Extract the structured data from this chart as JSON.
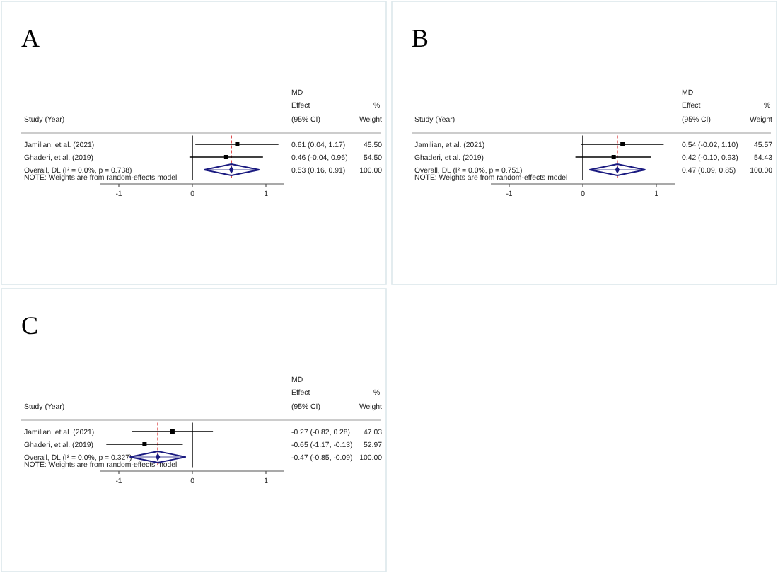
{
  "chart_data": [
    {
      "type": "scatter",
      "title": "A",
      "orientation": "horizontal",
      "categories": [
        "Jamilian, et al. (2021)",
        "Ghaderi, et al. (2019)",
        "Overall, DL (I² = 0.0%, p = 0.738)"
      ],
      "series": [
        {
          "color": "#000000",
          "marker": "square",
          "values": [
            0.61,
            0.46,
            null
          ],
          "errors": [
            [
              0.04,
              1.17
            ],
            [
              -0.04,
              0.96
            ],
            null
          ],
          "value_labels": [
            "0.61 (0.04, 1.17)",
            "0.46 (-0.04, 0.96)",
            null
          ]
        },
        {
          "color": "#1a1a80",
          "marker": "diamond",
          "values": [
            null,
            null,
            0.53
          ],
          "errors": [
            null,
            null,
            [
              0.16,
              0.91
            ]
          ]
        }
      ],
      "xlim": [
        -1.25,
        1.25
      ],
      "xticks": [
        -1,
        0,
        1
      ],
      "ref_lines": [
        {
          "axis": "x",
          "value": 0,
          "color": "#000000",
          "line_style": "solid"
        },
        {
          "axis": "x",
          "value": 0.53,
          "color": "#d62728",
          "line_style": "dashed"
        }
      ],
      "annotations": [
        "MD",
        "Effect",
        "(95% CI)",
        "%",
        "Weight",
        "Study (Year)",
        "NOTE: Weights are from random-effects model",
        "45.50",
        "54.50",
        "100.00",
        "0.53 (0.16, 0.91)"
      ]
    },
    {
      "type": "scatter",
      "title": "B",
      "orientation": "horizontal",
      "categories": [
        "Jamilian, et al. (2021)",
        "Ghaderi, et al. (2019)",
        "Overall, DL (I² = 0.0%, p = 0.751)"
      ],
      "series": [
        {
          "color": "#000000",
          "marker": "square",
          "values": [
            0.54,
            0.42,
            null
          ],
          "errors": [
            [
              -0.02,
              1.1
            ],
            [
              -0.1,
              0.93
            ],
            null
          ],
          "value_labels": [
            "0.54 (-0.02, 1.10)",
            "0.42 (-0.10, 0.93)",
            null
          ]
        },
        {
          "color": "#1a1a80",
          "marker": "diamond",
          "values": [
            null,
            null,
            0.47
          ],
          "errors": [
            null,
            null,
            [
              0.09,
              0.85
            ]
          ]
        }
      ],
      "xlim": [
        -1.25,
        1.25
      ],
      "xticks": [
        -1,
        0,
        1
      ],
      "ref_lines": [
        {
          "axis": "x",
          "value": 0,
          "color": "#000000",
          "line_style": "solid"
        },
        {
          "axis": "x",
          "value": 0.47,
          "color": "#d62728",
          "line_style": "dashed"
        }
      ],
      "annotations": [
        "MD",
        "Effect",
        "(95% CI)",
        "%",
        "Weight",
        "Study (Year)",
        "NOTE: Weights are from random-effects model",
        "45.57",
        "54.43",
        "100.00",
        "0.47 (0.09, 0.85)"
      ]
    },
    {
      "type": "scatter",
      "title": "C",
      "orientation": "horizontal",
      "categories": [
        "Jamilian, et al. (2021)",
        "Ghaderi, et al. (2019)",
        "Overall, DL (I² = 0.0%, p = 0.327)"
      ],
      "series": [
        {
          "color": "#000000",
          "marker": "square",
          "values": [
            -0.27,
            -0.65,
            null
          ],
          "errors": [
            [
              -0.82,
              0.28
            ],
            [
              -1.17,
              -0.13
            ],
            null
          ],
          "value_labels": [
            "-0.27 (-0.82, 0.28)",
            "-0.65 (-1.17, -0.13)",
            null
          ]
        },
        {
          "color": "#1a1a80",
          "marker": "diamond",
          "values": [
            null,
            null,
            -0.47
          ],
          "errors": [
            null,
            null,
            [
              -0.85,
              -0.09
            ]
          ]
        }
      ],
      "xlim": [
        -1.25,
        1.25
      ],
      "xticks": [
        -1,
        0,
        1
      ],
      "ref_lines": [
        {
          "axis": "x",
          "value": 0,
          "color": "#000000",
          "line_style": "solid"
        },
        {
          "axis": "x",
          "value": -0.47,
          "color": "#d62728",
          "line_style": "dashed"
        }
      ],
      "annotations": [
        "MD",
        "Effect",
        "(95% CI)",
        "%",
        "Weight",
        "Study (Year)",
        "NOTE: Weights are from random-effects model",
        "47.03",
        "52.97",
        "100.00",
        "-0.47 (-0.85, -0.09)"
      ]
    }
  ]
}
